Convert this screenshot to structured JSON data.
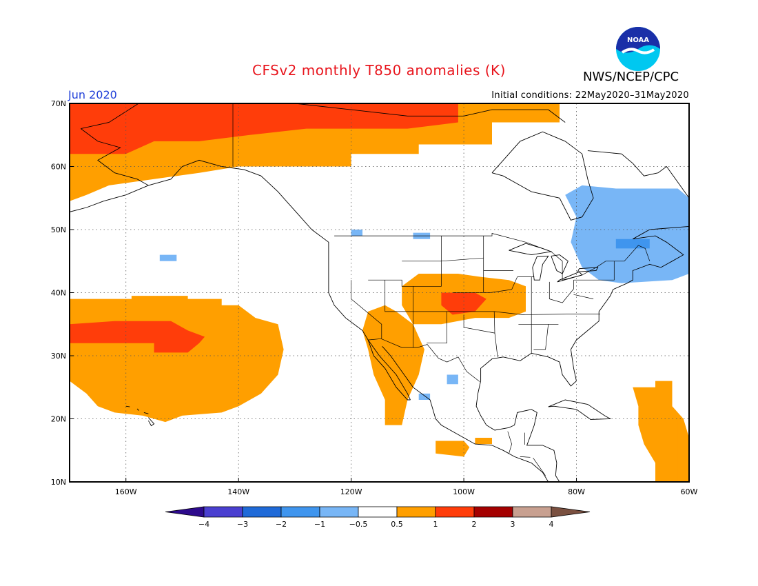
{
  "header": {
    "title": "CFSv2 monthly T850 anomalies (K)",
    "agency": "NWS/NCEP/CPC",
    "logo_text": "NOAA",
    "month": "Jun 2020",
    "initial_conditions": "Initial conditions: 22May2020–31May2020"
  },
  "colors": {
    "title": "#e8141c",
    "month": "#1f3fd8",
    "c_neg4": "#2d0a8c",
    "c_neg3": "#4a3fd0",
    "c_neg2": "#1f6ad8",
    "c_neg1": "#3f95ee",
    "c_neg05": "#78b6f6",
    "c_zero": "#ffffff",
    "c_pos05": "#ff9f00",
    "c_pos1": "#ff3d0a",
    "c_pos2": "#a40000",
    "c_pos3": "#c8a090",
    "c_pos4": "#7a5040"
  },
  "map": {
    "lon_range": [
      -170,
      -60
    ],
    "lat_range": [
      10,
      70
    ],
    "lon_ticks": [
      {
        "value": -160,
        "label": "160W"
      },
      {
        "value": -140,
        "label": "140W"
      },
      {
        "value": -120,
        "label": "120W"
      },
      {
        "value": -100,
        "label": "100W"
      },
      {
        "value": -80,
        "label": "80W"
      },
      {
        "value": -60,
        "label": "60W"
      }
    ],
    "lat_ticks": [
      {
        "value": 10,
        "label": "10N"
      },
      {
        "value": 20,
        "label": "20N"
      },
      {
        "value": 30,
        "label": "30N"
      },
      {
        "value": 40,
        "label": "40N"
      },
      {
        "value": 50,
        "label": "50N"
      },
      {
        "value": 60,
        "label": "60N"
      },
      {
        "value": 70,
        "label": "70N"
      }
    ],
    "grid": "dotted",
    "anomaly_regions": [
      {
        "name": "arctic-warm",
        "level": "0.5",
        "lon": [
          -170,
          -83
        ],
        "lat": [
          54.5,
          70
        ]
      },
      {
        "name": "arctic-warm-core",
        "level": "1",
        "lon": [
          -170,
          -101
        ],
        "lat": [
          61.5,
          70
        ]
      },
      {
        "name": "north-pacific-warm",
        "level": "0.5",
        "lon": [
          -170,
          -132
        ],
        "lat": [
          19.5,
          39.5
        ]
      },
      {
        "name": "north-pacific-warm-core",
        "level": "1",
        "lon": [
          -170,
          -145
        ],
        "lat": [
          30.5,
          35.5
        ]
      },
      {
        "name": "southwest-us-warm",
        "level": "0.5",
        "lon": [
          -116,
          -105
        ],
        "lat": [
          18,
          38
        ]
      },
      {
        "name": "central-plains-warm",
        "level": "0.5",
        "lon": [
          -111,
          -89
        ],
        "lat": [
          34,
          43
        ]
      },
      {
        "name": "central-plains-warm-core",
        "level": "1",
        "lon": [
          -104,
          -96
        ],
        "lat": [
          36,
          40
        ]
      },
      {
        "name": "quebec-cool",
        "level": "-0.5",
        "lon": [
          -82,
          -60
        ],
        "lat": [
          40,
          57
        ]
      },
      {
        "name": "quebec-cool-core",
        "level": "-1",
        "lon": [
          -73,
          -67
        ],
        "lat": [
          47,
          49
        ]
      },
      {
        "name": "caribbean-warm",
        "level": "0.5",
        "lon": [
          -70,
          -60
        ],
        "lat": [
          10,
          26
        ]
      },
      {
        "name": "central-america-warm",
        "level": "0.5",
        "lon": [
          -105,
          -99
        ],
        "lat": [
          14,
          16.5
        ]
      },
      {
        "name": "pacific-cool-speck",
        "level": "-0.5",
        "lon": [
          -154,
          -151
        ],
        "lat": [
          45,
          45.8
        ]
      }
    ]
  },
  "colorbar": {
    "levels": [
      "-4",
      "-3",
      "-2",
      "-1",
      "-0.5",
      "0.5",
      "1",
      "2",
      "3",
      "4"
    ]
  }
}
